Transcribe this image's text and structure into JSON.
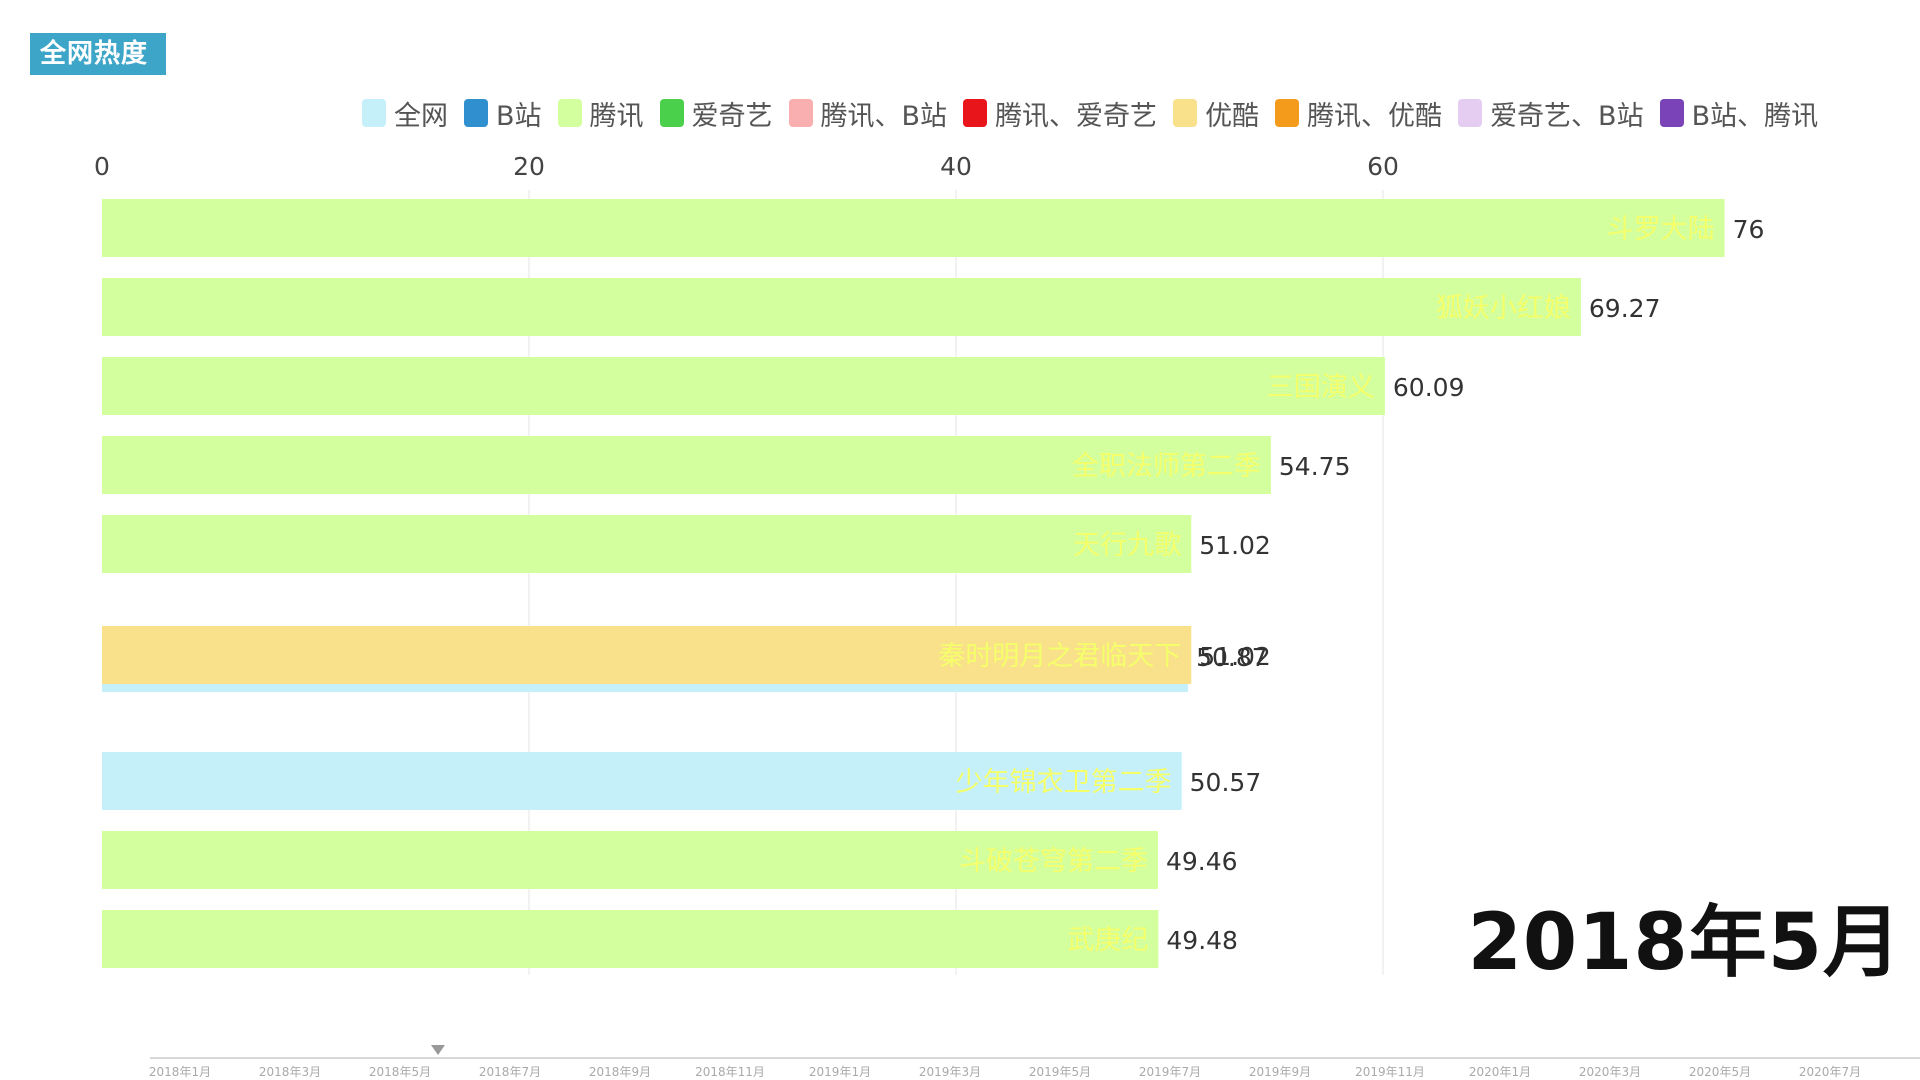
{
  "header": {
    "title": "全网热度"
  },
  "legend": [
    {
      "label": "全网",
      "color": "#c5f0fa"
    },
    {
      "label": "B站",
      "color": "#2f8fcf"
    },
    {
      "label": "腾讯",
      "color": "#d4ff9e"
    },
    {
      "label": "爱奇艺",
      "color": "#4bd04b"
    },
    {
      "label": "腾讯、B站",
      "color": "#f9aeb0"
    },
    {
      "label": "腾讯、爱奇艺",
      "color": "#e8151b"
    },
    {
      "label": "优酷",
      "color": "#f9e08a"
    },
    {
      "label": "腾讯、优酷",
      "color": "#f59b1c"
    },
    {
      "label": "爱奇艺、B站",
      "color": "#e4cdf0"
    },
    {
      "label": "B站、腾讯",
      "color": "#7a44b8"
    }
  ],
  "chart_data": {
    "type": "bar",
    "orientation": "horizontal",
    "xlim": [
      0,
      85
    ],
    "x_ticks": [
      0,
      20,
      40,
      60
    ],
    "grid": true,
    "legend_position": "top-right",
    "bars": [
      {
        "label": "斗罗大陆",
        "value": 76,
        "value_label": "76",
        "platform": "腾讯"
      },
      {
        "label": "狐妖小红娘",
        "value": 69.27,
        "value_label": "69.27",
        "platform": "腾讯"
      },
      {
        "label": "三国演义",
        "value": 60.09,
        "value_label": "60.09",
        "platform": "腾讯"
      },
      {
        "label": "全职法师第二季",
        "value": 54.75,
        "value_label": "54.75",
        "platform": "腾讯"
      },
      {
        "label": "天行九歌",
        "value": 51.02,
        "value_label": "51.02",
        "platform": "腾讯"
      },
      {
        "label": "",
        "value": 50.87,
        "value_label": "50.87",
        "platform": "全网"
      },
      {
        "label": "秦时明月之君临天下",
        "value": 51.02,
        "value_label": "51.02",
        "platform": "优酷"
      },
      {
        "label": "少年锦衣卫第二季",
        "value": 50.57,
        "value_label": "50.57",
        "platform": "全网"
      },
      {
        "label": "斗破苍穹第二季",
        "value": 49.46,
        "value_label": "49.46",
        "platform": "腾讯"
      },
      {
        "label": "武庚纪",
        "value": 49.48,
        "value_label": "49.48",
        "platform": "腾讯"
      }
    ]
  },
  "period_label": "2018年5月",
  "timeline": {
    "ticks": [
      "2018年1月",
      "2018年3月",
      "2018年5月",
      "2018年7月",
      "2018年9月",
      "2018年11月",
      "2019年1月",
      "2019年3月",
      "2019年5月",
      "2019年7月",
      "2019年9月",
      "2019年11月",
      "2020年1月",
      "2020年3月",
      "2020年5月",
      "2020年7月"
    ],
    "current": "2018年5月"
  }
}
